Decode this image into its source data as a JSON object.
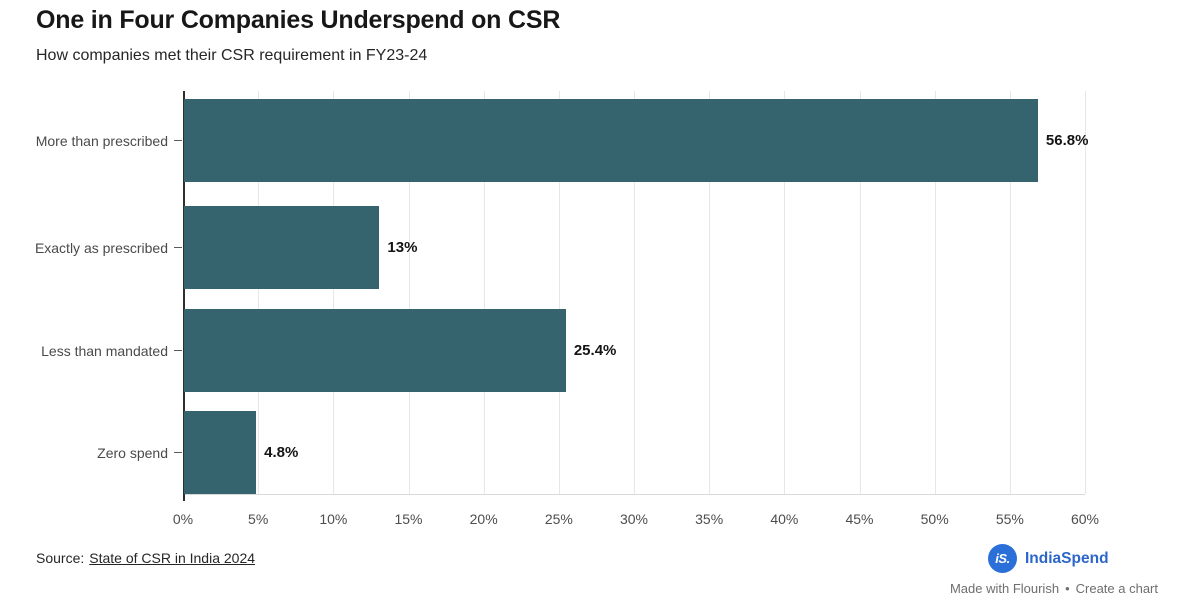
{
  "chart_data": {
    "type": "bar",
    "orientation": "horizontal",
    "title": "One in Four Companies Underspend on CSR",
    "subtitle": "How companies met their CSR requirement in FY23-24",
    "categories": [
      "More than prescribed",
      "Exactly as prescribed",
      "Less than mandated",
      "Zero spend"
    ],
    "values": [
      56.8,
      13,
      25.4,
      4.8
    ],
    "value_labels": [
      "56.8%",
      "13%",
      "25.4%",
      "4.8%"
    ],
    "xlim": [
      0,
      60
    ],
    "x_tick_step": 5,
    "x_ticks": [
      "0%",
      "5%",
      "10%",
      "15%",
      "20%",
      "25%",
      "30%",
      "35%",
      "40%",
      "45%",
      "50%",
      "55%",
      "60%"
    ],
    "grid": "vertical",
    "legend": "none",
    "bar_color": "#35646F"
  },
  "footer": {
    "source_prefix": "Source:",
    "source_link_text": "State of CSR in India 2024",
    "brand": {
      "monogram": "iS.",
      "name": "IndiaSpend"
    },
    "credits": {
      "made_with_flourish": "Made with Flourish",
      "separator": "•",
      "create_a_chart": "Create a chart"
    }
  },
  "colors": {
    "bar": "#35646F",
    "brand_circle_blue": "#2B70D9",
    "brand_text_blue": "#2B66C8",
    "gridline": "#e7e7e7",
    "axis_line": "#2e2e2e"
  }
}
